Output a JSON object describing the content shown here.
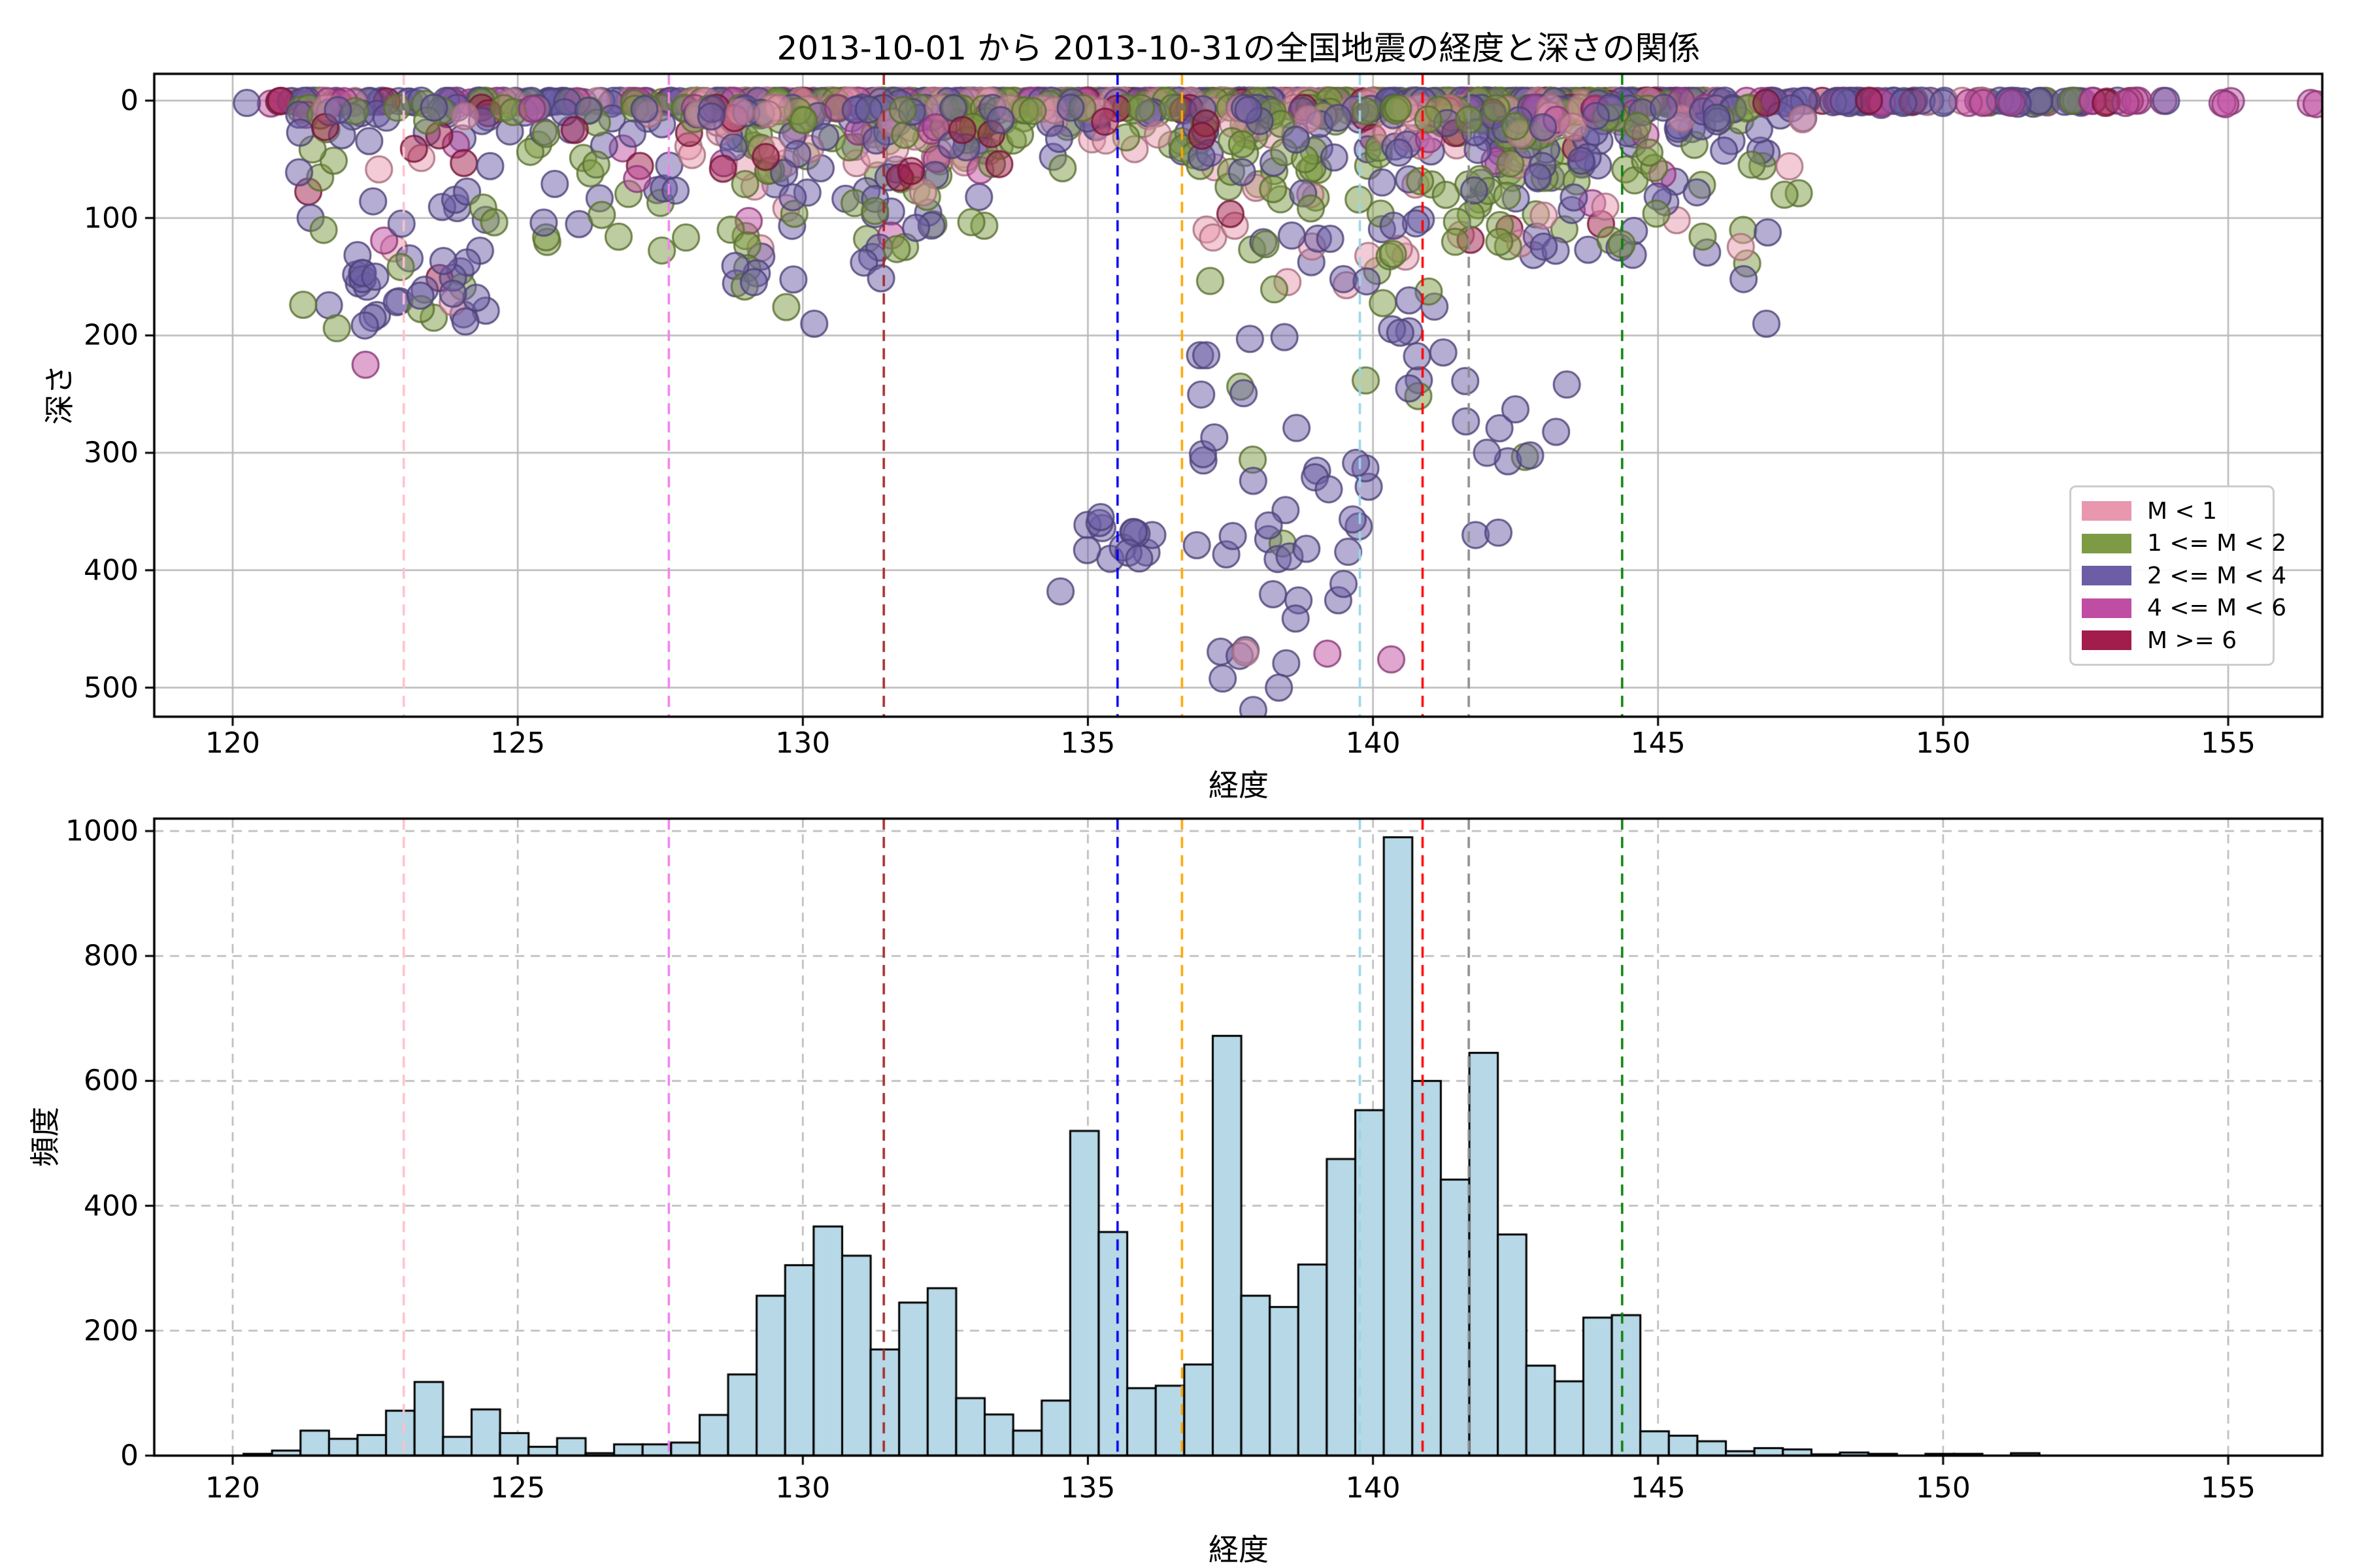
{
  "figure": {
    "title": "2013-10-01 から 2013-10-31の全国地震の経度と深さの関係",
    "background": "#ffffff"
  },
  "chart_data": [
    {
      "type": "scatter",
      "title": "2013-10-01 から 2013-10-31の全国地震の経度と深さの関係",
      "xlabel": "経度",
      "ylabel": "深さ",
      "xticks": [
        120,
        125,
        130,
        135,
        140,
        145,
        150,
        155
      ],
      "yticks": [
        0,
        100,
        200,
        300,
        400,
        500
      ],
      "xlim": [
        118.62,
        156.65
      ],
      "depth_lim": [
        -23,
        525
      ],
      "grid": "solid",
      "legend_position": "lower right",
      "legend": [
        {
          "label": "M < 1",
          "color": "#e897ae"
        },
        {
          "label": "1 <= M < 2",
          "color": "#7d9b44"
        },
        {
          "label": "2 <= M < 4",
          "color": "#6c5da6"
        },
        {
          "label": "4 <= M < 6",
          "color": "#bf4da2"
        },
        {
          "label": "M >= 6",
          "color": "#a21d4c"
        }
      ],
      "vlines": [
        {
          "x": 123.0,
          "color": "#ffc0cb"
        },
        {
          "x": 127.65,
          "color": "#ee82ee"
        },
        {
          "x": 131.42,
          "color": "#a52a2a"
        },
        {
          "x": 135.52,
          "color": "#0000ee"
        },
        {
          "x": 136.65,
          "color": "#ffa500"
        },
        {
          "x": 139.77,
          "color": "#99d6ea"
        },
        {
          "x": 140.87,
          "color": "#ff0000"
        },
        {
          "x": 141.68,
          "color": "#8c8c8c"
        },
        {
          "x": 144.37,
          "color": "#0a800a"
        }
      ],
      "clusters": [
        {
          "n": 90,
          "x": [
            120.6,
            128.0
          ],
          "d": [
            0,
            6
          ],
          "dist": "surf",
          "w": [
            0.08,
            0.17,
            0.52,
            0.15,
            0.08
          ]
        },
        {
          "n": 230,
          "x": [
            128.0,
            134.7
          ],
          "d": [
            0,
            6
          ],
          "dist": "surf",
          "w": [
            0.34,
            0.3,
            0.27,
            0.05,
            0.04
          ]
        },
        {
          "n": 240,
          "x": [
            134.7,
            140.2
          ],
          "d": [
            0,
            6
          ],
          "dist": "surf",
          "w": [
            0.38,
            0.3,
            0.24,
            0.04,
            0.04
          ]
        },
        {
          "n": 270,
          "x": [
            140.2,
            146.0
          ],
          "d": [
            0,
            6
          ],
          "dist": "surf",
          "w": [
            0.2,
            0.3,
            0.42,
            0.05,
            0.03
          ]
        },
        {
          "n": 80,
          "x": [
            146.0,
            152.6
          ],
          "d": [
            0,
            6
          ],
          "dist": "surf",
          "w": [
            0.05,
            0.05,
            0.72,
            0.15,
            0.03
          ]
        },
        {
          "n": 10,
          "x": [
            152.6,
            155.2
          ],
          "d": [
            0,
            5
          ],
          "dist": "surf",
          "w": [
            0,
            0,
            0.4,
            0.5,
            0.1
          ]
        },
        {
          "n": 80,
          "x": [
            121.0,
            124.5
          ],
          "d": [
            6,
            195
          ],
          "dist": "exp",
          "w": [
            0.05,
            0.28,
            0.52,
            0.05,
            0.1
          ]
        },
        {
          "n": 55,
          "x": [
            124.5,
            128.0
          ],
          "d": [
            6,
            130
          ],
          "dist": "exp",
          "w": [
            0.05,
            0.4,
            0.45,
            0.05,
            0.05
          ]
        },
        {
          "n": 190,
          "x": [
            128.0,
            133.3
          ],
          "d": [
            6,
            135
          ],
          "dist": "exp",
          "w": [
            0.28,
            0.36,
            0.26,
            0.04,
            0.06
          ]
        },
        {
          "n": 10,
          "x": [
            128.6,
            131.6
          ],
          "d": [
            135,
            195
          ],
          "dist": "uni",
          "w": [
            0,
            0.5,
            0.5,
            0,
            0
          ]
        },
        {
          "n": 55,
          "x": [
            133.3,
            136.8
          ],
          "d": [
            6,
            65
          ],
          "dist": "exp",
          "w": [
            0.25,
            0.4,
            0.3,
            0,
            0.05
          ]
        },
        {
          "n": 110,
          "x": [
            136.8,
            140.2
          ],
          "d": [
            6,
            165
          ],
          "dist": "exp",
          "w": [
            0.2,
            0.4,
            0.35,
            0,
            0.05
          ]
        },
        {
          "n": 210,
          "x": [
            140.2,
            144.6
          ],
          "d": [
            6,
            135
          ],
          "dist": "exp",
          "w": [
            0.15,
            0.35,
            0.42,
            0.04,
            0.04
          ]
        },
        {
          "n": 55,
          "x": [
            144.6,
            147.6
          ],
          "d": [
            6,
            155
          ],
          "dist": "exp",
          "w": [
            0.1,
            0.35,
            0.5,
            0.05,
            0
          ]
        },
        {
          "n": 9,
          "x": [
            123.0,
            124.3
          ],
          "d": [
            130,
            195
          ],
          "dist": "uni",
          "w": [
            0,
            0.3,
            0.7,
            0,
            0
          ]
        },
        {
          "n": 13,
          "x": [
            134.9,
            136.4
          ],
          "d": [
            350,
            400
          ],
          "dist": "uni",
          "w": [
            0,
            0,
            1,
            0,
            0
          ]
        },
        {
          "n": 22,
          "x": [
            136.9,
            138.7
          ],
          "d": [
            200,
            400
          ],
          "dist": "uni",
          "w": [
            0,
            0.1,
            0.9,
            0,
            0
          ]
        },
        {
          "n": 8,
          "x": [
            137.3,
            138.7
          ],
          "d": [
            400,
            520
          ],
          "dist": "uni",
          "w": [
            0,
            0,
            1,
            0,
            0
          ]
        },
        {
          "n": 12,
          "x": [
            138.8,
            140.1
          ],
          "d": [
            280,
            480
          ],
          "dist": "uni",
          "w": [
            0,
            0,
            1,
            0,
            0
          ]
        },
        {
          "n": 14,
          "x": [
            139.8,
            141.3
          ],
          "d": [
            150,
            265
          ],
          "dist": "uni",
          "w": [
            0,
            0.2,
            0.8,
            0,
            0
          ]
        },
        {
          "n": 9,
          "x": [
            141.4,
            143.4
          ],
          "d": [
            225,
            310
          ],
          "dist": "uni",
          "w": [
            0,
            0.3,
            0.7,
            0,
            0
          ]
        }
      ],
      "singles": [
        [
          122.33,
          225,
          3
        ],
        [
          134.52,
          418,
          2
        ],
        [
          137.76,
          470,
          0
        ],
        [
          139.2,
          471,
          3
        ],
        [
          140.32,
          476,
          3
        ],
        [
          137.9,
          519,
          2
        ],
        [
          138.35,
          500,
          2
        ],
        [
          135.9,
          390,
          2
        ],
        [
          146.9,
          190,
          2
        ],
        [
          146.5,
          152,
          2
        ],
        [
          142.0,
          300,
          2
        ],
        [
          141.8,
          370,
          2
        ],
        [
          142.2,
          368,
          2
        ],
        [
          130.2,
          190,
          2
        ],
        [
          122.5,
          150,
          2
        ],
        [
          126.0,
          25,
          4
        ],
        [
          129.35,
          48,
          4
        ],
        [
          132.8,
          25,
          4
        ],
        [
          135.3,
          18,
          4
        ],
        [
          131.9,
          60,
          4
        ],
        [
          128.6,
          58,
          4
        ],
        [
          137.0,
          30,
          4
        ],
        [
          152.85,
          2,
          4
        ],
        [
          146.9,
          2,
          4
        ],
        [
          149.3,
          2,
          2
        ],
        [
          150.0,
          2,
          2
        ],
        [
          153.2,
          2,
          3
        ],
        [
          154.9,
          2,
          3
        ],
        [
          154.95,
          3,
          3
        ],
        [
          150.45,
          2,
          3
        ],
        [
          150.7,
          2,
          3
        ],
        [
          151.2,
          2,
          3
        ],
        [
          120.25,
          2,
          2
        ],
        [
          156.45,
          2,
          3
        ],
        [
          156.55,
          3,
          3
        ]
      ]
    },
    {
      "type": "bar",
      "xlabel": "経度",
      "ylabel": "頻度",
      "xticks": [
        120,
        125,
        130,
        135,
        140,
        145,
        150,
        155
      ],
      "yticks": [
        0,
        200,
        400,
        600,
        800,
        1000
      ],
      "xlim": [
        118.62,
        156.65
      ],
      "ylim": [
        0,
        1020
      ],
      "grid": "dashed",
      "bar_fill": "#b7d8e6",
      "bar_edge": "#000000",
      "bin_start": 120.19,
      "bin_width": 0.5,
      "values": [
        3,
        8,
        40,
        27,
        33,
        72,
        118,
        30,
        74,
        36,
        14,
        28,
        4,
        18,
        18,
        21,
        65,
        130,
        256,
        305,
        367,
        320,
        170,
        245,
        268,
        92,
        66,
        40,
        88,
        520,
        358,
        108,
        112,
        146,
        672,
        256,
        238,
        306,
        475,
        553,
        990,
        600,
        442,
        645,
        354,
        144,
        119,
        221,
        225,
        39,
        32,
        23,
        7,
        12,
        10,
        2,
        5,
        3,
        0,
        3,
        3,
        0,
        4,
        0
      ],
      "vlines": [
        {
          "x": 123.0,
          "color": "#ffc0cb"
        },
        {
          "x": 127.65,
          "color": "#ee82ee"
        },
        {
          "x": 131.42,
          "color": "#a52a2a"
        },
        {
          "x": 135.52,
          "color": "#0000ee"
        },
        {
          "x": 136.65,
          "color": "#ffa500"
        },
        {
          "x": 139.77,
          "color": "#99d6ea"
        },
        {
          "x": 140.87,
          "color": "#ff0000"
        },
        {
          "x": 141.68,
          "color": "#8c8c8c"
        },
        {
          "x": 144.37,
          "color": "#0a800a"
        }
      ]
    }
  ]
}
